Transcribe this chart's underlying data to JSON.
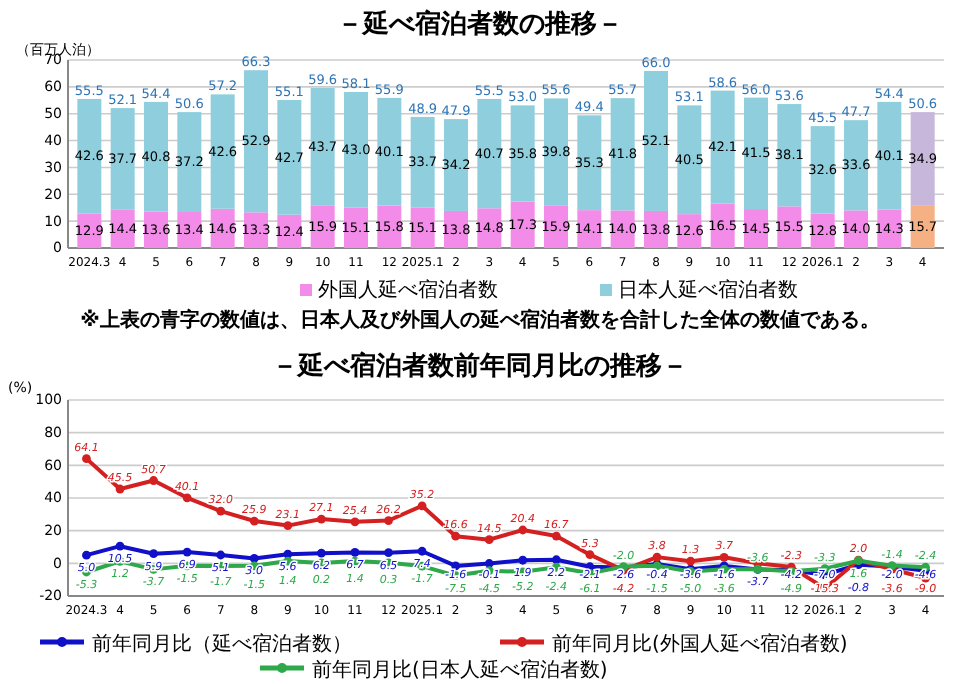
{
  "chart_data": [
    {
      "type": "bar",
      "title": "－延べ宿泊者数の推移－",
      "ylabel": "（百万人泊）",
      "stacked": true,
      "data_labels": true,
      "grid": "y",
      "legend": "bottom",
      "ylim": [
        0,
        70
      ],
      "yticks": [
        0,
        10,
        20,
        30,
        40,
        50,
        60,
        70
      ],
      "categories": [
        "2024.3",
        "4",
        "5",
        "6",
        "7",
        "8",
        "9",
        "10",
        "11",
        "12",
        "2025.1",
        "2",
        "3",
        "4",
        "5",
        "6",
        "7",
        "8",
        "9",
        "10",
        "11",
        "12",
        "2026.1",
        "2",
        "3",
        "4"
      ],
      "series": [
        {
          "name": "外国人延べ宿泊者数",
          "color": "#f28ce8",
          "colors": [
            "#f28ce8",
            "#f28ce8",
            "#f28ce8",
            "#f28ce8",
            "#f28ce8",
            "#f28ce8",
            "#f28ce8",
            "#f28ce8",
            "#f28ce8",
            "#f28ce8",
            "#f28ce8",
            "#f28ce8",
            "#f28ce8",
            "#f28ce8",
            "#f28ce8",
            "#f28ce8",
            "#f28ce8",
            "#f28ce8",
            "#f28ce8",
            "#f28ce8",
            "#f28ce8",
            "#f28ce8",
            "#f28ce8",
            "#f28ce8",
            "#f28ce8",
            "#f5b183"
          ],
          "values": [
            12.9,
            14.4,
            13.6,
            13.4,
            14.6,
            13.3,
            12.4,
            15.9,
            15.1,
            15.8,
            15.1,
            13.8,
            14.8,
            17.3,
            15.9,
            14.1,
            14.0,
            13.8,
            12.6,
            16.5,
            14.5,
            15.5,
            12.8,
            14.0,
            14.3,
            15.7
          ],
          "value_labels": [
            "12.9",
            "14.4",
            "13.6",
            "13.4",
            "14.6",
            "13.3",
            "12.4",
            "15.9",
            "15.1",
            "15.8",
            "15.1",
            "13.8",
            "14.8",
            "17.3",
            "15.9",
            "14.1",
            "14.0",
            "13.8",
            "12.6",
            "16.5",
            "14.5",
            "15.5",
            "12.8",
            "14.0",
            "14.3",
            "15.7"
          ]
        },
        {
          "name": "日本人延べ宿泊者数",
          "color": "#8fcfdd",
          "colors": [
            "#8fcfdd",
            "#8fcfdd",
            "#8fcfdd",
            "#8fcfdd",
            "#8fcfdd",
            "#8fcfdd",
            "#8fcfdd",
            "#8fcfdd",
            "#8fcfdd",
            "#8fcfdd",
            "#8fcfdd",
            "#8fcfdd",
            "#8fcfdd",
            "#8fcfdd",
            "#8fcfdd",
            "#8fcfdd",
            "#8fcfdd",
            "#8fcfdd",
            "#8fcfdd",
            "#8fcfdd",
            "#8fcfdd",
            "#8fcfdd",
            "#8fcfdd",
            "#8fcfdd",
            "#8fcfdd",
            "#c7b7db"
          ],
          "values": [
            42.6,
            37.7,
            40.8,
            37.2,
            42.6,
            52.9,
            42.7,
            43.7,
            43.0,
            40.1,
            33.7,
            34.2,
            40.7,
            35.8,
            39.8,
            35.3,
            41.8,
            52.1,
            40.5,
            42.1,
            41.5,
            38.1,
            32.6,
            33.6,
            40.1,
            34.9
          ],
          "value_labels": [
            "42.6",
            "37.7",
            "40.8",
            "37.2",
            "42.6",
            "52.9",
            "42.7",
            "43.7",
            "43.0",
            "40.1",
            "33.7",
            "34.2",
            "40.7",
            "35.8",
            "39.8",
            "35.3",
            "41.8",
            "52.1",
            "40.5",
            "42.1",
            "41.5",
            "38.1",
            "32.6",
            "33.6",
            "40.1",
            "34.9"
          ]
        }
      ],
      "totals": [
        "55.5",
        "52.1",
        "54.4",
        "50.6",
        "57.2",
        "66.3",
        "55.1",
        "59.6",
        "58.1",
        "55.9",
        "48.9",
        "47.9",
        "55.5",
        "53.0",
        "55.6",
        "49.4",
        "55.7",
        "66.0",
        "53.1",
        "58.6",
        "56.0",
        "53.6",
        "45.5",
        "47.7",
        "54.4",
        "50.6"
      ],
      "annotations": [
        "※上表の青字の数値は、日本人及び外国人の延べ宿泊者数を合計した全体の数値である。"
      ]
    },
    {
      "type": "line",
      "title": "－延べ宿泊者数前年同月比の推移－",
      "ylabel": "(%)",
      "grid": "y",
      "legend": "bottom",
      "marker": "circle",
      "line_style": "solid",
      "ylim": [
        -20,
        100
      ],
      "yticks": [
        -20,
        0,
        20,
        40,
        60,
        80,
        100
      ],
      "categories": [
        "2024.3",
        "4",
        "5",
        "6",
        "7",
        "8",
        "9",
        "10",
        "11",
        "12",
        "2025.1",
        "2",
        "3",
        "4",
        "5",
        "6",
        "7",
        "8",
        "9",
        "10",
        "11",
        "12",
        "2026.1",
        "2",
        "3",
        "4"
      ],
      "series": [
        {
          "name": "前年同月比（延べ宿泊者数）",
          "color": "#1010c8",
          "values": [
            5.0,
            10.5,
            5.9,
            6.9,
            5.1,
            3.0,
            5.6,
            6.2,
            6.7,
            6.5,
            7.4,
            -1.6,
            -0.1,
            1.9,
            2.2,
            -2.1,
            -2.6,
            -0.4,
            -3.6,
            -1.6,
            -3.7,
            -4.2,
            -7.0,
            -0.8,
            -2.0,
            -4.6
          ],
          "value_labels": [
            "5.0",
            "10.5",
            "5.9",
            "6.9",
            "5.1",
            "3.0",
            "5.6",
            "6.2",
            "6.7",
            "6.5",
            "7.4",
            "-1.6",
            "-0.1",
            "1.9",
            "2.2",
            "-2.1",
            "-2.6",
            "-0.4",
            "-3.6",
            "-1.6",
            "-3.7",
            "-4.2",
            "-7.0",
            "-0.8",
            "-2.0",
            "-4.6"
          ]
        },
        {
          "name": "前年同月比(外国人延べ宿泊者数)",
          "color": "#d42020",
          "values": [
            64.1,
            45.5,
            50.7,
            40.1,
            32.0,
            25.9,
            23.1,
            27.1,
            25.4,
            26.2,
            35.2,
            16.6,
            14.5,
            20.4,
            16.7,
            5.3,
            -4.2,
            3.8,
            1.3,
            3.7,
            0,
            -2.3,
            -15.3,
            2.0,
            -3.6,
            -9.0
          ],
          "value_labels": [
            "64.1",
            "45.5",
            "50.7",
            "40.1",
            "32.0",
            "25.9",
            "23.1",
            "27.1",
            "25.4",
            "26.2",
            "35.2",
            "16.6",
            "14.5",
            "20.4",
            "16.7",
            "5.3",
            "-4.2",
            "3.8",
            "1.3",
            "3.7",
            null,
            "-2.3",
            "-15.3",
            "2.0",
            "-3.6",
            "-9.0"
          ]
        },
        {
          "name": "前年同月比(日本人延べ宿泊者数)",
          "color": "#2ea84a",
          "values": [
            -5.3,
            1.2,
            -3.7,
            -1.5,
            -1.7,
            -1.5,
            1.4,
            0.2,
            1.4,
            0.3,
            -1.7,
            -7.5,
            -4.5,
            -5.2,
            -2.4,
            -6.1,
            -2.0,
            -1.5,
            -5.0,
            -3.6,
            -3.6,
            -4.9,
            -3.3,
            1.6,
            -1.4,
            -2.4
          ],
          "value_labels": [
            "-5.3",
            "1.2",
            "-3.7",
            "-1.5",
            "-1.7",
            "-1.5",
            "1.4",
            "0.2",
            "1.4",
            "0.3",
            "-1.7",
            "-7.5",
            "-4.5",
            "-5.2",
            "-2.4",
            "-6.1",
            "-2.0",
            "-1.5",
            "-5.0",
            "-3.6",
            "-3.6",
            "-4.9",
            "-3.3",
            "1.6",
            "-1.4",
            "-2.4"
          ]
        }
      ]
    }
  ]
}
